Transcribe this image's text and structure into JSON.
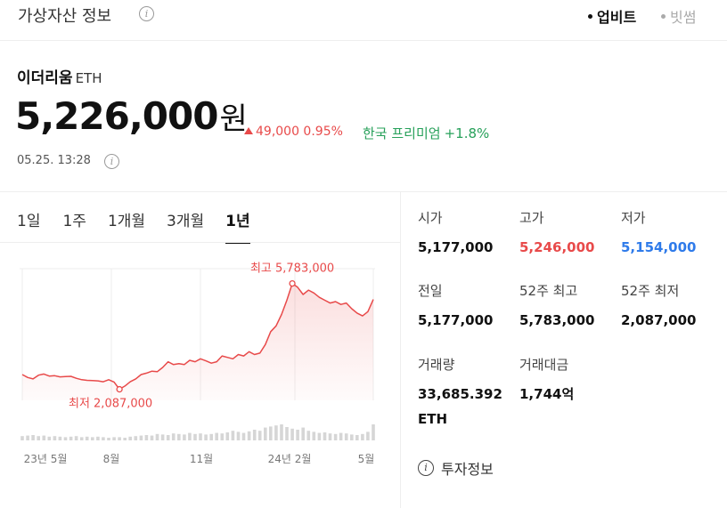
{
  "header": {
    "title": "가상자산 정보",
    "sources": [
      "업비트",
      "빗썸"
    ]
  },
  "asset": {
    "name": "이더리움",
    "ticker": "ETH"
  },
  "price": {
    "value": "5,226,000",
    "unit": "원",
    "change": "49,000 0.95%",
    "premium_label": "한국 프리미엄",
    "premium_value": "+1.8%",
    "timestamp": "05.25. 13:28"
  },
  "tabs": [
    "1일",
    "1주",
    "1개월",
    "3개월",
    "1년"
  ],
  "active_tab": "1년",
  "stats": {
    "open_label": "시가",
    "open": "5,177,000",
    "high_label": "고가",
    "high": "5,246,000",
    "low_label": "저가",
    "low": "5,154,000",
    "prev_label": "전일",
    "prev": "5,177,000",
    "w52_high_label": "52주 최고",
    "w52_high": "5,783,000",
    "w52_low_label": "52주 최저",
    "w52_low": "2,087,000",
    "volume_label": "거래량",
    "volume": "33,685.392 ETH",
    "turnover_label": "거래대금",
    "turnover": "1,744억"
  },
  "info_link": "투자정보",
  "colors": {
    "up": "#e84a4a",
    "down": "#2f7bea",
    "premium": "#27a05a",
    "chart_line": "#e84a4a"
  },
  "chart_data": {
    "type": "line",
    "x_ticks": [
      "23년 5월",
      "8월",
      "11월",
      "24년 2월",
      "5월"
    ],
    "max_label": "최고 5,783,000",
    "min_label": "최저 2,087,000",
    "ylim": [
      1700000,
      6300000
    ],
    "values": [
      2600000,
      2500000,
      2450000,
      2580000,
      2620000,
      2550000,
      2560000,
      2520000,
      2530000,
      2540000,
      2470000,
      2420000,
      2400000,
      2390000,
      2380000,
      2350000,
      2420000,
      2340000,
      2087000,
      2200000,
      2350000,
      2450000,
      2600000,
      2650000,
      2720000,
      2700000,
      2850000,
      3050000,
      2950000,
      2980000,
      2950000,
      3100000,
      3050000,
      3150000,
      3080000,
      3000000,
      3050000,
      3250000,
      3200000,
      3150000,
      3300000,
      3250000,
      3400000,
      3300000,
      3350000,
      3650000,
      4100000,
      4300000,
      4700000,
      5200000,
      5783000,
      5650000,
      5400000,
      5550000,
      5450000,
      5300000,
      5200000,
      5100000,
      5150000,
      5050000,
      5100000,
      4900000,
      4750000,
      4650000,
      4800000,
      5226000
    ],
    "volume": [
      8,
      9,
      10,
      8,
      9,
      7,
      8,
      7,
      6,
      7,
      8,
      6,
      7,
      6,
      7,
      6,
      5,
      6,
      6,
      5,
      7,
      8,
      9,
      10,
      9,
      12,
      11,
      10,
      13,
      12,
      11,
      14,
      12,
      13,
      11,
      12,
      14,
      13,
      15,
      18,
      16,
      14,
      17,
      20,
      18,
      24,
      26,
      28,
      30,
      25,
      22,
      20,
      24,
      18,
      16,
      14,
      15,
      13,
      12,
      14,
      13,
      11,
      10,
      12,
      16,
      30
    ]
  }
}
